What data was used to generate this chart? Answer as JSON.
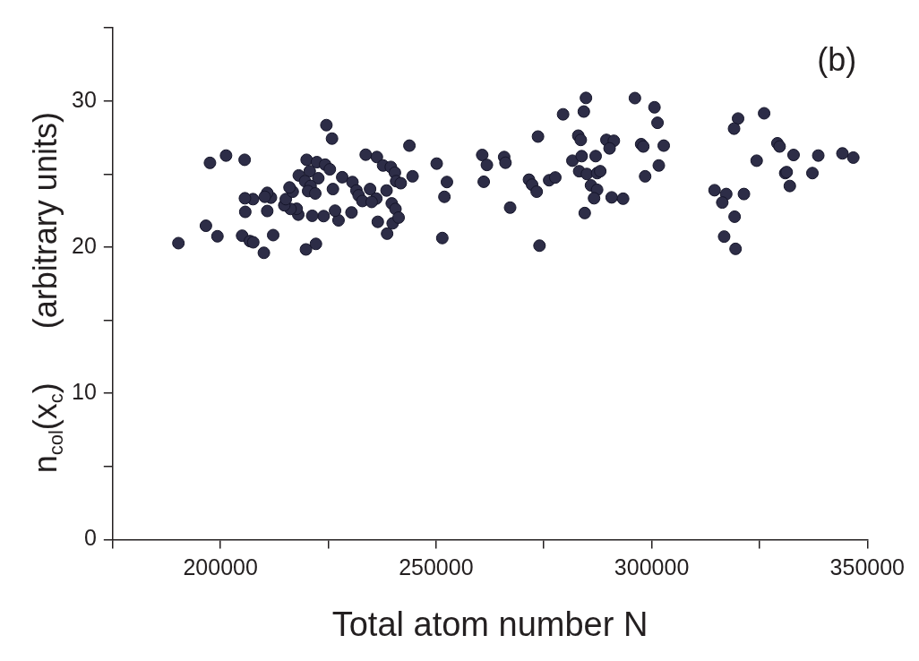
{
  "chart_data": {
    "type": "scatter",
    "xlabel": "Total atom number N",
    "ylabel": "n$_{col}$(x$_{c}$)      (arbitrary units)",
    "annotations": [
      "(b)"
    ],
    "xlim": [
      175000,
      350000
    ],
    "xticks": [
      {
        "value": 175000,
        "label": null
      },
      200000,
      {
        "value": 225000,
        "label": null
      },
      250000,
      {
        "value": 275000,
        "label": null
      },
      300000,
      {
        "value": 325000,
        "label": null
      },
      350000
    ],
    "ylim": [
      0,
      35
    ],
    "yticks": [
      0,
      {
        "value": 5,
        "label": null
      },
      10,
      {
        "value": 15,
        "label": null
      },
      20,
      {
        "value": 25,
        "label": null
      },
      30,
      {
        "value": 35,
        "label": null
      }
    ],
    "grid": false,
    "legend": false,
    "marker": "circle",
    "series": [
      {
        "color": "#2d2d47",
        "x": [
          197560,
          201290,
          205600,
          219980,
          222350,
          224280,
          225360,
          218160,
          220690,
          222690,
          219610,
          220900,
          220320,
          221980,
          226070,
          228230,
          230600,
          231530,
          232040,
          232910,
          234690,
          236140,
          235060,
          238510,
          233680,
          236270,
          237710,
          239500,
          240450,
          240730,
          239720,
          239930,
          238640,
          236480,
          230380,
          227370,
          226570,
          223920,
          221270,
          218040,
          217670,
          216230,
          214800,
          215150,
          216740,
          216010,
          211700,
          210840,
          210280,
          207540,
          205670,
          205750,
          210840,
          196620,
          199290,
          205020,
          206830,
          207600,
          212220,
          210060,
          190240,
          219820,
          222130,
          225860,
          224560,
          243810,
          241800,
          244540,
          240580,
          241310,
          250140,
          252510,
          251930,
          251440,
          260700,
          261780,
          261050,
          265790,
          266090,
          267170,
          273630,
          271540,
          272260,
          273330,
          273980,
          276220,
          277640,
          279450,
          284260,
          284750,
          282970,
          283550,
          281610,
          283760,
          287000,
          283180,
          284970,
          287340,
          288070,
          285920,
          287340,
          286630,
          284470,
          289500,
          291220,
          290230,
          290720,
          293370,
          296110,
          300640,
          301350,
          297550,
          298050,
          302790,
          301650,
          298480,
          320030,
          319100,
          326070,
          329150,
          329660,
          332900,
          338630,
          344230,
          346750,
          324340,
          330960,
          331300,
          337270,
          332030,
          314580,
          317290,
          316370,
          321390,
          319230,
          316800,
          319450
        ],
        "values": [
          25.76,
          26.26,
          25.97,
          25.97,
          25.81,
          25.64,
          25.32,
          24.9,
          25.19,
          24.71,
          24.51,
          24.18,
          23.83,
          23.67,
          23.97,
          24.78,
          24.45,
          23.87,
          23.54,
          23.15,
          23.97,
          23.32,
          23.09,
          23.87,
          26.32,
          26.16,
          25.58,
          25.48,
          25.09,
          24.51,
          22.99,
          21.63,
          20.92,
          21.73,
          22.37,
          21.83,
          22.49,
          22.12,
          22.14,
          22.22,
          22.62,
          22.61,
          22.86,
          23.28,
          23.79,
          24.08,
          23.38,
          23.71,
          23.44,
          23.28,
          23.34,
          22.41,
          22.47,
          21.46,
          20.74,
          20.78,
          20.41,
          20.33,
          20.82,
          19.61,
          20.27,
          19.84,
          20.22,
          27.42,
          28.34,
          26.94,
          24.37,
          24.84,
          22.61,
          22.02,
          25.71,
          24.45,
          23.44,
          20.62,
          26.3,
          25.62,
          24.47,
          26.16,
          25.77,
          22.7,
          27.56,
          24.61,
          24.27,
          23.79,
          20.1,
          24.57,
          24.76,
          29.08,
          29.27,
          30.2,
          27.62,
          27.33,
          25.91,
          26.22,
          26.22,
          25.19,
          25.0,
          25.06,
          25.19,
          24.22,
          23.92,
          23.34,
          22.33,
          27.33,
          27.27,
          26.75,
          23.4,
          23.31,
          30.19,
          29.56,
          28.5,
          27.04,
          26.88,
          26.94,
          25.58,
          24.84,
          28.79,
          28.1,
          29.15,
          27.1,
          26.88,
          26.3,
          26.26,
          26.41,
          26.12,
          25.91,
          25.06,
          25.13,
          25.06,
          24.18,
          23.89,
          23.63,
          23.05,
          23.63,
          22.08,
          20.72,
          19.88
        ]
      }
    ]
  }
}
